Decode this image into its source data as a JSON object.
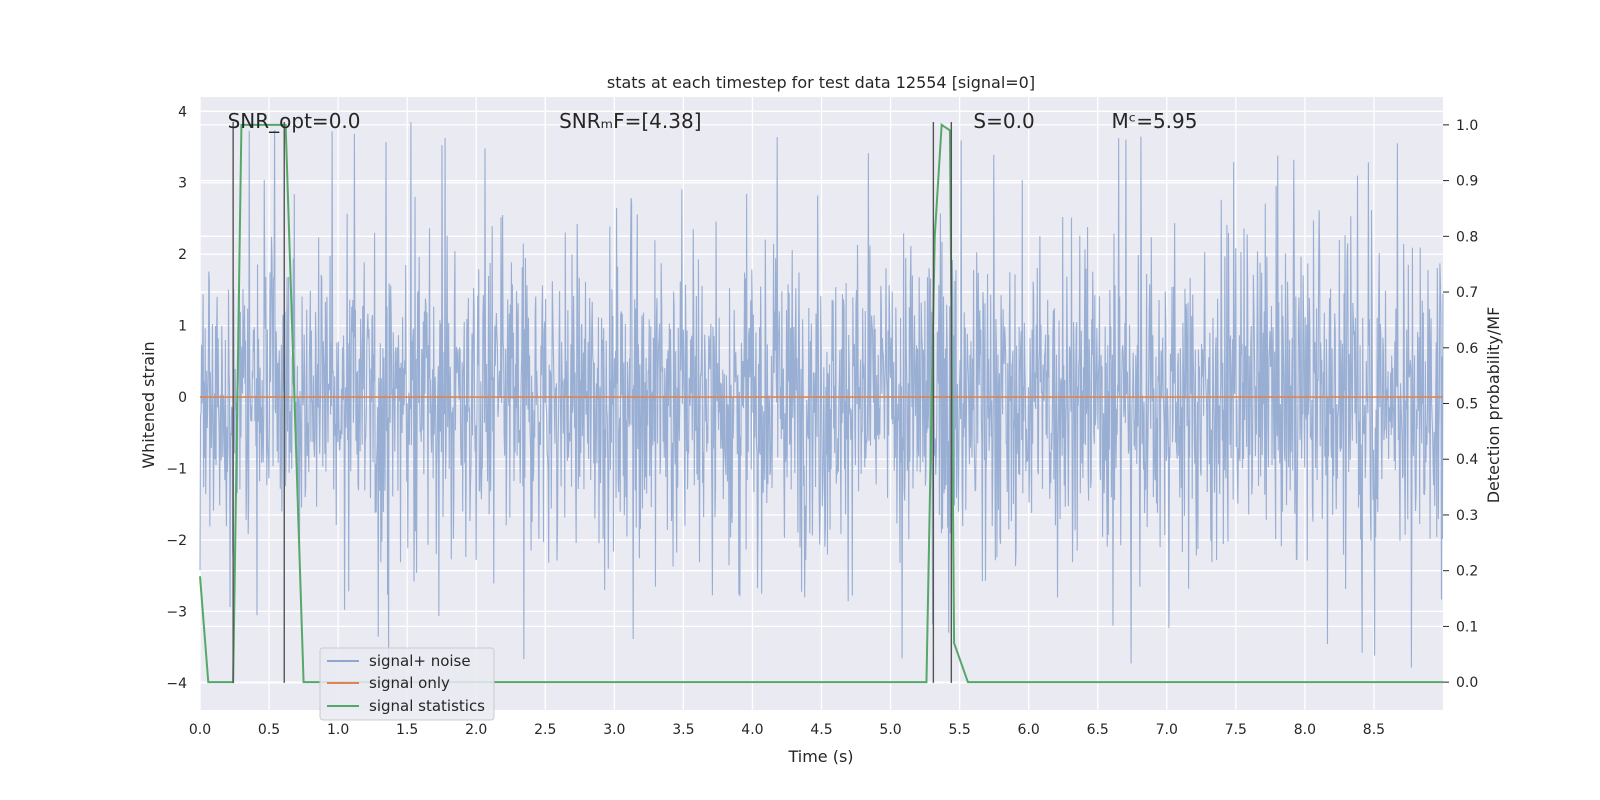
{
  "chart_data": {
    "type": "line",
    "title": "stats at each timestep for test data 12554 [signal=0]",
    "xlabel": "Time (s)",
    "ylabel": "Whitened strain",
    "y2label": "Detection probability/MF",
    "xlim": [
      0.0,
      9.0
    ],
    "ylim": [
      -4.38,
      4.2
    ],
    "y2lim": [
      -0.05,
      1.05
    ],
    "xticks": [
      0.0,
      0.5,
      1.0,
      1.5,
      2.0,
      2.5,
      3.0,
      3.5,
      4.0,
      4.5,
      5.0,
      5.5,
      6.0,
      6.5,
      7.0,
      7.5,
      8.0,
      8.5
    ],
    "xtick_labels": [
      "0.0",
      "0.5",
      "1.0",
      "1.5",
      "2.0",
      "2.5",
      "3.0",
      "3.5",
      "4.0",
      "4.5",
      "5.0",
      "5.5",
      "6.0",
      "6.5",
      "7.0",
      "7.5",
      "8.0",
      "8.5"
    ],
    "yticks": [
      -4,
      -3,
      -2,
      -1,
      0,
      1,
      2,
      3,
      4
    ],
    "ytick_labels": [
      "−4",
      "−3",
      "−2",
      "−1",
      "0",
      "1",
      "2",
      "3",
      "4"
    ],
    "y2ticks": [
      0.0,
      0.1,
      0.2,
      0.3,
      0.4,
      0.5,
      0.6,
      0.7,
      0.8,
      0.9,
      1.0
    ],
    "y2tick_labels": [
      "0.0",
      "0.1",
      "0.2",
      "0.3",
      "0.4",
      "0.5",
      "0.6",
      "0.7",
      "0.8",
      "0.9",
      "1.0"
    ],
    "annotations": [
      {
        "name": "snr-opt",
        "text": "SNR_opt=0.0",
        "x": 0.2,
        "y": 3.85
      },
      {
        "name": "snr-mf",
        "text": "SNRₘF=[4.38]",
        "x": 2.6,
        "y": 3.85
      },
      {
        "name": "s-value",
        "text": "S=0.0",
        "x": 5.6,
        "y": 3.85
      },
      {
        "name": "mc-value",
        "text": "Mᶜ=5.95",
        "x": 6.6,
        "y": 3.85
      }
    ],
    "series": [
      {
        "name": "signal+ noise",
        "color": "#8fa7cf",
        "description": "whitened noise, amplitude roughly within ±2 with peaks up to ±3.9",
        "amplitude": 1.7,
        "peak": 3.9
      },
      {
        "name": "signal only",
        "color": "#dd8452",
        "x": [
          0.0,
          9.0
        ],
        "y": [
          0.0,
          0.0
        ]
      },
      {
        "name": "signal statistics",
        "color": "#55a868",
        "axis": "right",
        "x": [
          0.0,
          0.06,
          0.24,
          0.3,
          0.62,
          0.75,
          5.26,
          5.32,
          5.37,
          5.43,
          5.46,
          5.56,
          9.0
        ],
        "y": [
          0.19,
          0.0,
          0.0,
          1.0,
          1.0,
          0.0,
          0.0,
          0.8,
          1.0,
          0.99,
          0.07,
          0.0,
          0.0
        ]
      }
    ],
    "vlines": [
      {
        "x": 0.24,
        "y": [
          -4.0,
          3.85
        ]
      },
      {
        "x": 0.61,
        "y": [
          -4.0,
          3.85
        ]
      },
      {
        "x": 5.31,
        "y": [
          -4.0,
          3.85
        ]
      },
      {
        "x": 5.44,
        "y": [
          -4.0,
          3.85
        ]
      }
    ],
    "legend": {
      "position": "lower-left",
      "entries": [
        "signal+ noise",
        "signal only",
        "signal statistics"
      ]
    },
    "style": {
      "background": "#eaeaf2",
      "grid": true,
      "grid_color": "#ffffff"
    }
  }
}
